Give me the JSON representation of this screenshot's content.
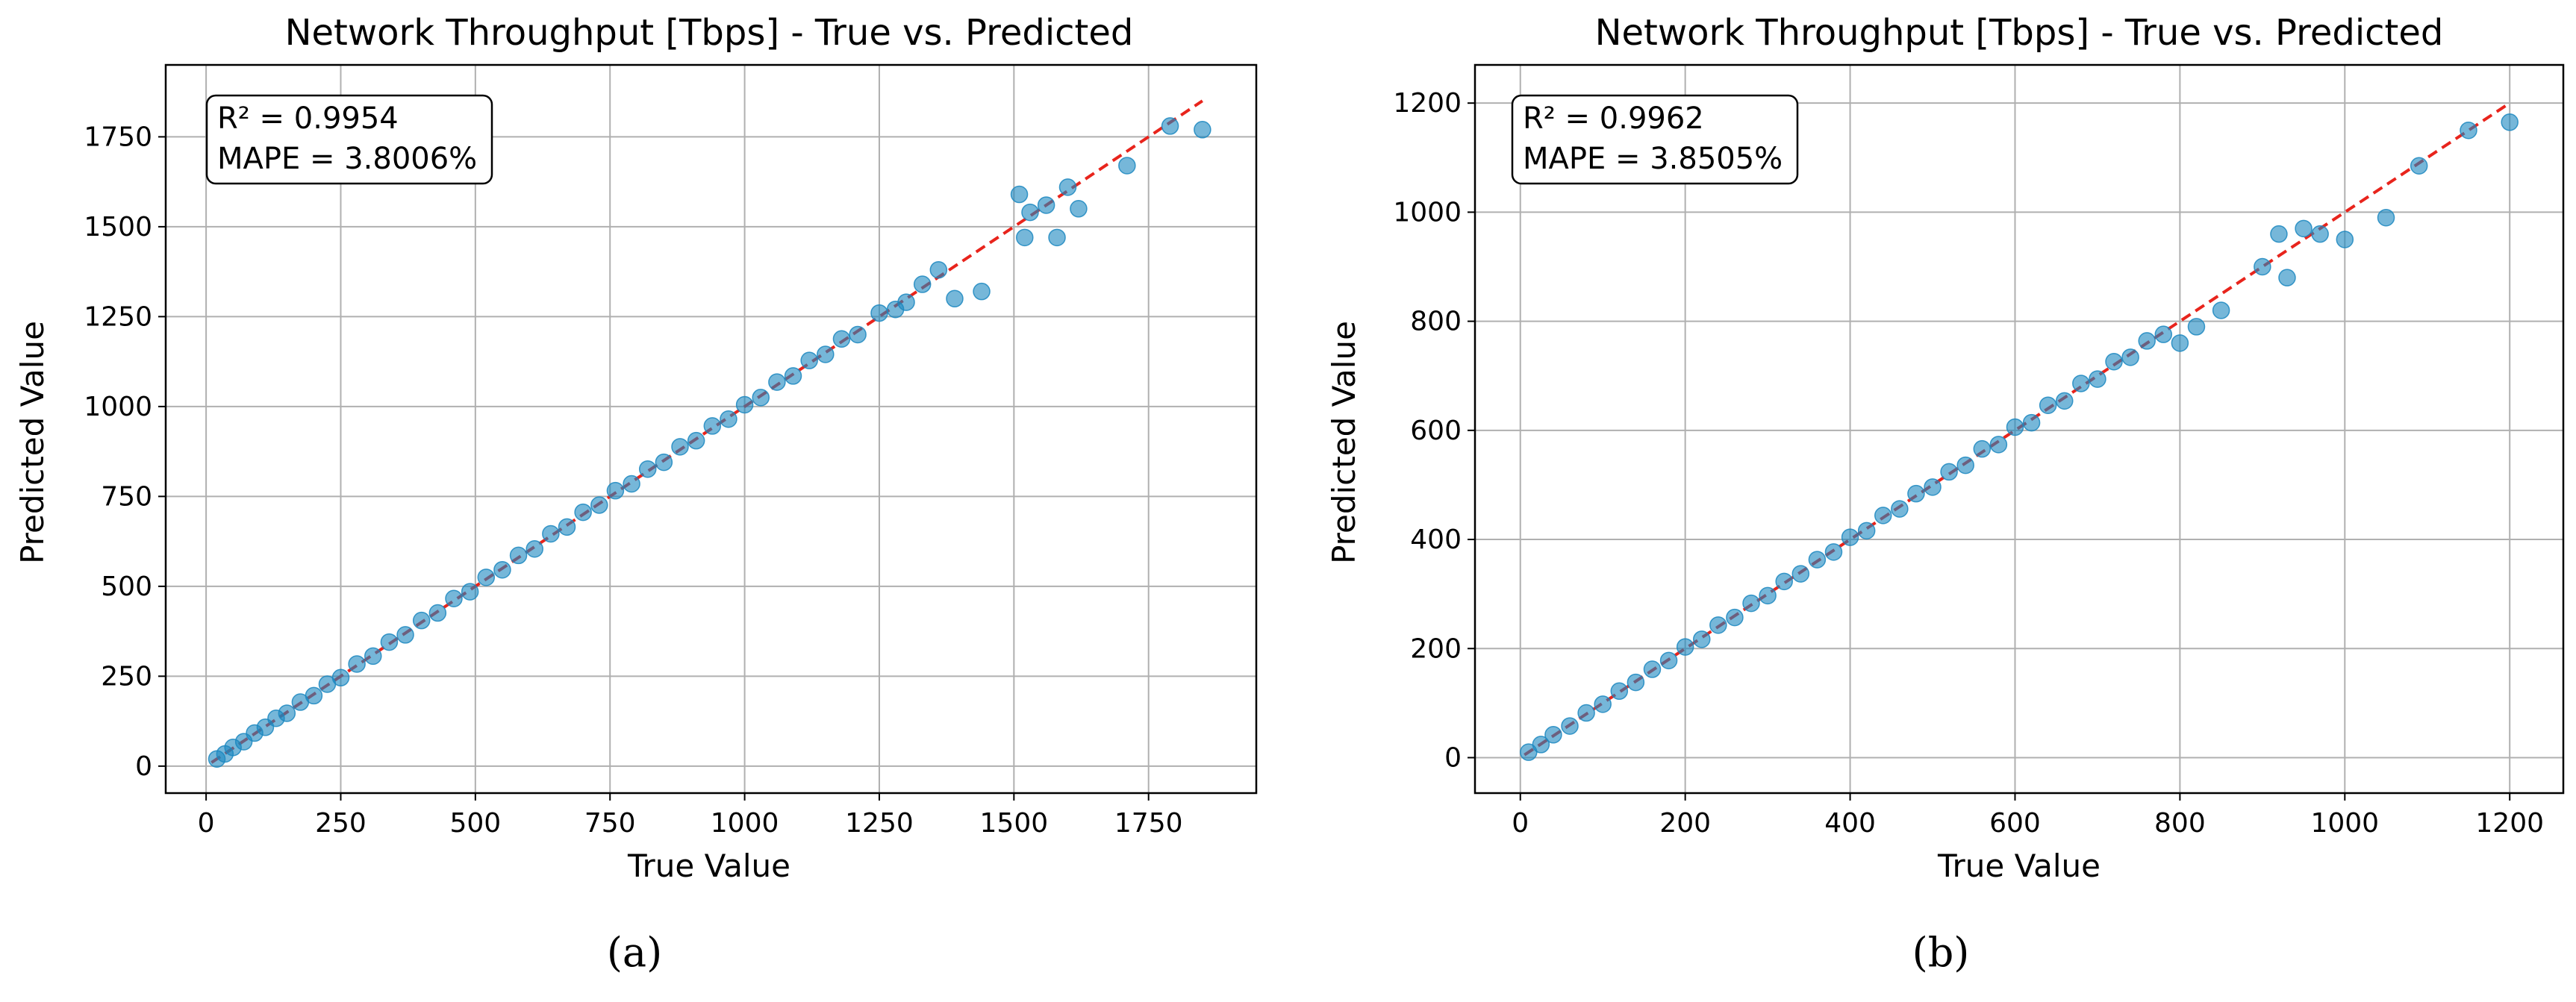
{
  "chart_data": [
    {
      "type": "scatter",
      "title": "Network Throughput [Tbps] - True vs. Predicted",
      "xlabel": "True Value",
      "ylabel": "Predicted Value",
      "xlim": [
        -75,
        1950
      ],
      "ylim": [
        -75,
        1950
      ],
      "xticks": [
        0,
        250,
        500,
        750,
        1000,
        1250,
        1500,
        1750
      ],
      "yticks": [
        0,
        250,
        500,
        750,
        1000,
        1250,
        1500,
        1750
      ],
      "grid": true,
      "annotation": [
        "R² = 0.9954",
        "MAPE = 3.8006%"
      ],
      "reference_line": {
        "from": [
          10,
          10
        ],
        "to": [
          1850,
          1850
        ],
        "color": "#e8241c",
        "style": "dashed"
      },
      "point_color": "#1b87bf",
      "caption": "(a)",
      "series": [
        {
          "x": [
            20,
            35,
            50,
            70,
            90,
            110,
            130,
            150,
            175,
            200,
            225,
            250,
            280,
            310,
            340,
            370,
            400,
            430,
            460,
            490,
            520,
            550,
            580,
            610,
            640,
            670,
            700,
            730,
            760,
            790,
            820,
            850,
            880,
            910,
            940,
            970,
            1000,
            1030,
            1060,
            1090,
            1120,
            1150,
            1180,
            1210,
            1250,
            1280,
            1300,
            1330,
            1360,
            1390,
            1440,
            1510,
            1520,
            1530,
            1560,
            1580,
            1600,
            1620,
            1710,
            1790,
            1850
          ],
          "y": [
            20,
            34,
            52,
            68,
            92,
            108,
            133,
            147,
            178,
            196,
            228,
            246,
            284,
            306,
            345,
            365,
            405,
            426,
            466,
            485,
            525,
            546,
            586,
            604,
            646,
            665,
            706,
            726,
            766,
            785,
            826,
            845,
            888,
            905,
            946,
            965,
            1005,
            1025,
            1068,
            1085,
            1128,
            1145,
            1188,
            1200,
            1260,
            1270,
            1290,
            1340,
            1380,
            1300,
            1320,
            1590,
            1470,
            1540,
            1560,
            1470,
            1610,
            1550,
            1670,
            1780,
            1770
          ]
        }
      ]
    },
    {
      "type": "scatter",
      "title": "Network Throughput [Tbps] - True vs. Predicted",
      "xlabel": "True Value",
      "ylabel": "Predicted Value",
      "xlim": [
        -55,
        1265
      ],
      "ylim": [
        -65,
        1270
      ],
      "xticks": [
        0,
        200,
        400,
        600,
        800,
        1000,
        1200
      ],
      "yticks": [
        0,
        200,
        400,
        600,
        800,
        1000,
        1200
      ],
      "grid": true,
      "annotation": [
        "R² = 0.9962",
        "MAPE = 3.8505%"
      ],
      "reference_line": {
        "from": [
          5,
          5
        ],
        "to": [
          1200,
          1200
        ],
        "color": "#e8241c",
        "style": "dashed"
      },
      "point_color": "#1b87bf",
      "caption": "(b)",
      "series": [
        {
          "x": [
            10,
            25,
            40,
            60,
            80,
            100,
            120,
            140,
            160,
            180,
            200,
            220,
            240,
            260,
            280,
            300,
            320,
            340,
            360,
            380,
            400,
            420,
            440,
            460,
            480,
            500,
            520,
            540,
            560,
            580,
            600,
            620,
            640,
            660,
            680,
            700,
            720,
            740,
            760,
            780,
            800,
            820,
            850,
            900,
            920,
            930,
            950,
            970,
            1000,
            1050,
            1090,
            1150,
            1200
          ],
          "y": [
            10,
            24,
            42,
            58,
            82,
            98,
            122,
            138,
            162,
            178,
            203,
            217,
            243,
            257,
            283,
            297,
            323,
            337,
            363,
            377,
            404,
            416,
            444,
            456,
            484,
            496,
            524,
            536,
            566,
            574,
            606,
            614,
            646,
            654,
            686,
            694,
            726,
            734,
            764,
            776,
            760,
            790,
            820,
            900,
            960,
            880,
            970,
            960,
            950,
            990,
            1085,
            1150,
            1165
          ]
        }
      ]
    }
  ]
}
